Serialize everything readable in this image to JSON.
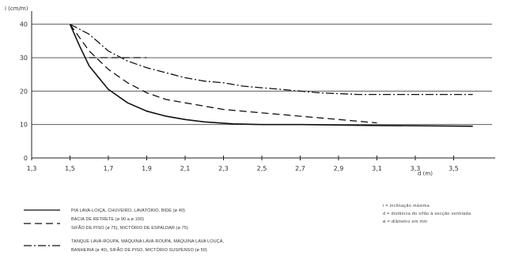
{
  "chart_data": {
    "type": "line",
    "ylabel": "i (cm/m)",
    "xlabel": "d (m)",
    "xlim": [
      1.3,
      3.7
    ],
    "ylim": [
      0,
      43
    ],
    "x_ticks": [
      "1,3",
      "1,5",
      "1,7",
      "1,9",
      "2,1",
      "2,3",
      "2,5",
      "2,7",
      "2,9",
      "3,1",
      "3,3",
      "3,5"
    ],
    "y_ticks": [
      "0",
      "10",
      "20",
      "30",
      "40"
    ],
    "grid": "horizontal",
    "series": [
      {
        "name": "PIA LAVA-LOIÇA, CHUVEIRO, LAVATÓRIO, BIDE (ø 40)",
        "style": "solid",
        "points": [
          [
            1.5,
            40
          ],
          [
            1.55,
            33.5
          ],
          [
            1.6,
            27.5
          ],
          [
            1.7,
            20.5
          ],
          [
            1.8,
            16.5
          ],
          [
            1.9,
            14
          ],
          [
            2.0,
            12.5
          ],
          [
            2.1,
            11.5
          ],
          [
            2.2,
            10.8
          ],
          [
            2.35,
            10.2
          ],
          [
            2.5,
            10
          ],
          [
            2.7,
            10
          ],
          [
            3.1,
            9.7
          ],
          [
            3.6,
            9.5
          ]
        ]
      },
      {
        "name": "BACIA DE RETRETE (ø 90 a ø 100) / SIFÃO DE PISO (ø 75), MICTÓRIO DE ESPALDAR (ø 75)",
        "style": "dashed",
        "points": [
          [
            1.5,
            40
          ],
          [
            1.55,
            36
          ],
          [
            1.6,
            32
          ],
          [
            1.7,
            26.5
          ],
          [
            1.8,
            22.5
          ],
          [
            1.9,
            19.5
          ],
          [
            2.0,
            17.5
          ],
          [
            2.1,
            16.5
          ],
          [
            2.3,
            14.5
          ],
          [
            2.5,
            13.5
          ],
          [
            2.7,
            12.5
          ],
          [
            2.9,
            11.5
          ],
          [
            3.1,
            10.5
          ]
        ]
      },
      {
        "name": "TANQUE LAVA-ROUPA, MÁQUINA LAVA-ROUPA, MÁQUINA LAVA LOUÇA, BANHEIRA (ø 40), SIFÃO DE PISO, MICTÓRIO SUSPENSO (ø 50)",
        "style": "dash-dot",
        "points": [
          [
            1.5,
            40
          ],
          [
            1.6,
            37
          ],
          [
            1.7,
            32
          ],
          [
            1.8,
            29
          ],
          [
            1.9,
            27
          ],
          [
            2.0,
            25.5
          ],
          [
            2.1,
            24
          ],
          [
            2.2,
            23
          ],
          [
            2.3,
            22.5
          ],
          [
            2.4,
            21.5
          ],
          [
            2.5,
            21
          ],
          [
            2.6,
            20.5
          ],
          [
            2.8,
            19.5
          ],
          [
            3.0,
            19
          ],
          [
            3.2,
            19
          ],
          [
            3.6,
            19
          ]
        ]
      },
      {
        "name": "",
        "style": "dashed",
        "points": [
          [
            1.6,
            30
          ],
          [
            1.75,
            30
          ],
          [
            1.9,
            30
          ]
        ]
      }
    ],
    "legend": [
      {
        "style": "solid",
        "text": "PIA LAVA-LOIÇA, CHUVEIRO, LAVATÓRIO, BIDE (ø 40)"
      },
      {
        "style": "dashed",
        "text": "BACIA DE RETRETE (ø 90 a ø 100)",
        "text2": "SIFÃO DE PISO (ø 75), MICTÓRIO DE ESPALDAR (ø 75)"
      },
      {
        "style": "dash-dot",
        "text": "TANQUE LAVA-ROUPA, MÁQUINA LAVA-ROUPA, MÁQUINA LAVA LOUÇA,",
        "text2": "BANHEIRA (ø 40), SIFÃO DE PISO, MICTÓRIO SUSPENSO (ø 50)"
      }
    ],
    "notes": [
      "i = inclinação máxima",
      "d = distância do sifão à secção ventilada",
      "ø = diâmetro em mm"
    ]
  }
}
